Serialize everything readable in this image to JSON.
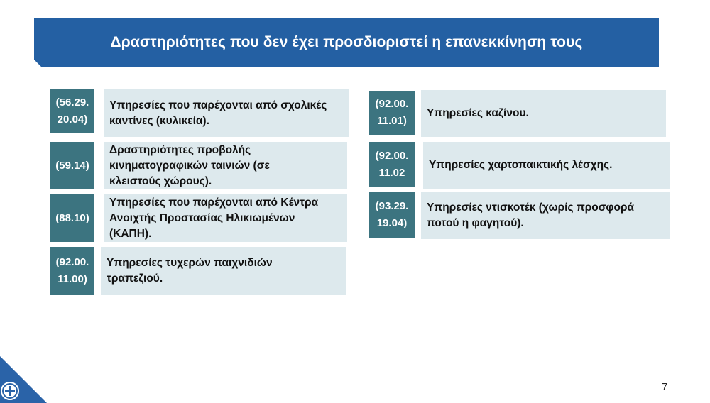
{
  "slide": {
    "title": "Δραστηριότητες που δεν έχει προσδιοριστεί η επανεκκίνηση τους",
    "page_number": "7",
    "emblem_icon": "greek-state-emblem-icon",
    "colors": {
      "banner": "#2460a3",
      "code_box": "#3c7480",
      "desc_box": "#dde9ed",
      "emblem": "#2a63a8"
    }
  },
  "left_items": [
    {
      "code": "(56.29.\n20.04)",
      "text": "Υπηρεσίες που παρέχονται από σχολικές\nκαντίνες (κυλικεία)."
    },
    {
      "code": "(59.14)",
      "text": "Δραστηριότητες προβολής\nκινηματογραφικών ταινιών (σε\nκλειστούς χώρους)."
    },
    {
      "code": "(88.10)",
      "text": "Υπηρεσίες που παρέχονται από Κέντρα\nΑνοιχτής Προστασίας Ηλικιωμένων\n(ΚΑΠΗ)."
    },
    {
      "code": "(92.00.\n11.00)",
      "text": "Υπηρεσίες τυχερών παιχνιδιών\nτραπεζιού."
    }
  ],
  "right_items": [
    {
      "code": "(92.00.\n11.01)",
      "text": "Υπηρεσίες καζίνου."
    },
    {
      "code": "(92.00.\n11.02",
      "text": "Υπηρεσίες χαρτοπαικτικής λέσχης."
    },
    {
      "code": "(93.29.\n19.04)",
      "text": "Υπηρεσίες ντισκοτέκ (χωρίς προσφορά\nποτού η φαγητού)."
    }
  ]
}
